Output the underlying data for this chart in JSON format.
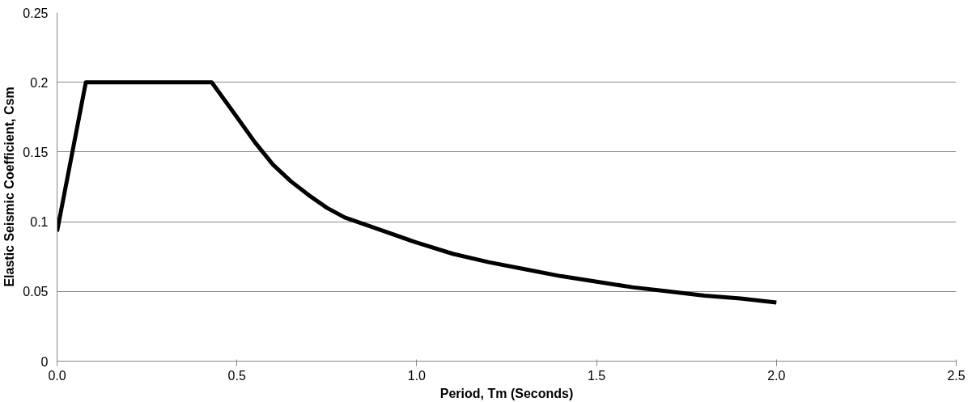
{
  "chart_data": {
    "type": "line",
    "xlabel": "Period, Tm (Seconds)",
    "ylabel": "Elastic Seismic Coefficient, Csm",
    "x": [
      0,
      0.08,
      0.43,
      0.5,
      0.55,
      0.6,
      0.65,
      0.7,
      0.75,
      0.8,
      0.9,
      1.0,
      1.1,
      1.2,
      1.3,
      1.4,
      1.5,
      1.6,
      1.7,
      1.8,
      1.9,
      2.0
    ],
    "series": [
      {
        "color": "#000000",
        "values": [
          0.093,
          0.2,
          0.2,
          0.175,
          0.157,
          0.141,
          0.129,
          0.119,
          0.11,
          0.103,
          0.094,
          0.085,
          0.077,
          0.071,
          0.066,
          0.061,
          0.057,
          0.053,
          0.05,
          0.047,
          0.045,
          0.042
        ]
      }
    ],
    "xlim": [
      0,
      2.5
    ],
    "xticks": [
      {
        "value": 0,
        "label": "0.0"
      },
      {
        "value": 0.5,
        "label": "0.5"
      },
      {
        "value": 1,
        "label": "1.0"
      },
      {
        "value": 1.5,
        "label": "1.5"
      },
      {
        "value": 2,
        "label": "2.0"
      },
      {
        "value": 2.5,
        "label": "2.5"
      }
    ],
    "ylim": [
      0,
      0.25
    ],
    "yticks": [
      0,
      0.05,
      0.1,
      0.15,
      0.2,
      0.25
    ],
    "grid": "y",
    "marker": "none",
    "line_style": "solid"
  }
}
